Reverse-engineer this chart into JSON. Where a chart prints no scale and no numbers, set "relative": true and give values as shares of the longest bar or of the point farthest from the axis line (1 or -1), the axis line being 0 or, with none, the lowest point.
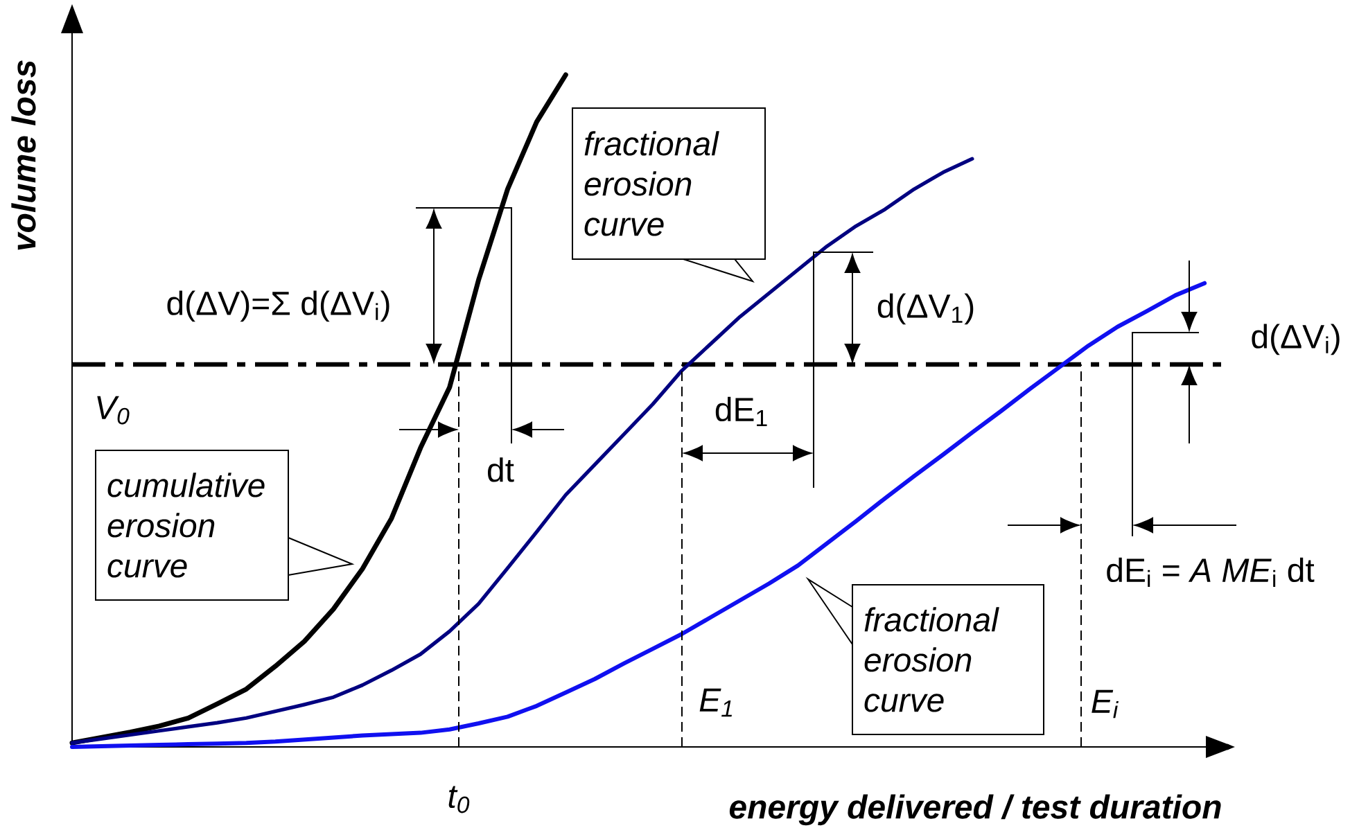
{
  "chart_data": {
    "type": "line",
    "relative": true,
    "xlabel": "energy delivered / test duration",
    "ylabel": "volume loss",
    "categories": [
      null,
      null,
      null,
      null,
      null,
      null,
      null,
      null,
      null,
      null,
      null,
      null,
      null,
      null,
      null,
      null,
      null,
      null,
      null,
      null,
      null,
      null,
      null,
      null,
      null,
      null,
      null,
      null,
      null,
      null,
      null,
      null,
      null,
      null,
      null,
      null,
      null,
      null,
      null,
      null,
      null
    ],
    "series": [
      {
        "color": "#000000",
        "values": [
          0.006,
          0.014,
          0.022,
          0.031,
          0.043,
          0.064,
          0.086,
          0.12,
          0.157,
          0.205,
          0.265,
          0.34,
          0.445,
          0.535,
          0.695,
          0.83,
          0.93,
          1.0,
          null,
          null,
          null,
          null,
          null,
          null,
          null,
          null,
          null,
          null,
          null,
          null,
          null,
          null,
          null,
          null,
          null,
          null,
          null,
          null,
          null,
          null,
          null
        ]
      },
      {
        "color": "#000080",
        "values": [
          0.006,
          0.012,
          0.018,
          0.024,
          0.03,
          0.036,
          0.043,
          0.053,
          0.063,
          0.074,
          0.092,
          0.114,
          0.138,
          0.172,
          0.213,
          0.266,
          0.32,
          0.375,
          0.42,
          0.465,
          0.51,
          0.56,
          0.6,
          0.64,
          0.675,
          0.71,
          0.745,
          0.775,
          0.8,
          0.83,
          0.855,
          0.875,
          null,
          null,
          null,
          null,
          null,
          null,
          null,
          null,
          null
        ]
      },
      {
        "color": "#1010f0",
        "values": [
          0,
          0.001,
          0.002,
          0.003,
          0.004,
          0.005,
          0.006,
          0.008,
          0.011,
          0.014,
          0.017,
          0.019,
          0.021,
          0.026,
          0.035,
          0.045,
          0.061,
          0.081,
          0.101,
          0.124,
          0.146,
          0.168,
          0.193,
          0.218,
          0.243,
          0.27,
          0.303,
          0.336,
          0.37,
          0.403,
          0.435,
          0.468,
          0.5,
          0.533,
          0.565,
          0.597,
          0.625,
          0.648,
          0.672,
          0.69,
          null
        ]
      }
    ],
    "ref_lines": [
      {
        "axis": "y",
        "value": 0.569,
        "label": "V$_{0}$",
        "line_style": "dashdot"
      }
    ],
    "annotations": [
      "d(ΔV)=Σ d(ΔV$_{i}$)",
      "d(ΔV$_{1}$)",
      "d(ΔV$_{i}$)",
      "dt",
      "dE$_{1}$",
      "dE$_{i}$ = *A ME*$_{i}$ dt",
      "cumulative erosion curve",
      "fractional erosion curve",
      "fractional erosion curve",
      "t$_{0}$",
      "E$_{1}$",
      "E$_{i}$"
    ]
  }
}
